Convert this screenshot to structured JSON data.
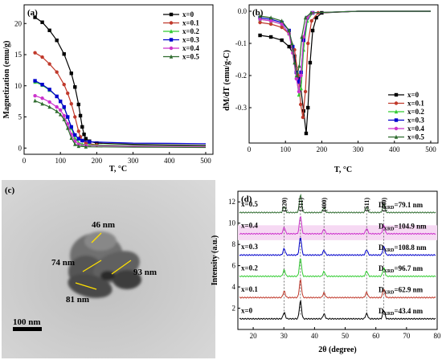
{
  "chart_data": [
    {
      "panel": "(a)",
      "type": "line",
      "xlabel": "T, °C",
      "ylabel": "Magnetization (emu/g)",
      "xlim": [
        0,
        520
      ],
      "ylim": [
        -1,
        23
      ],
      "xticks": [
        "0",
        "100",
        "200",
        "300",
        "400",
        "500"
      ],
      "yticks": [
        "0",
        "5",
        "10",
        "15",
        "20"
      ],
      "legend_position": "top-right",
      "series": [
        {
          "name": "x=0",
          "color": "#000000",
          "x": [
            30,
            50,
            70,
            90,
            110,
            130,
            140,
            150,
            155,
            160,
            165,
            170,
            180,
            200,
            300,
            400,
            500
          ],
          "y": [
            21,
            20.2,
            18.9,
            17.3,
            15.1,
            12,
            9.8,
            7,
            5.2,
            3.4,
            2.2,
            1.5,
            1.1,
            0.8,
            0.6,
            0.5,
            0.45
          ]
        },
        {
          "name": "x=0.1",
          "color": "#c0392b",
          "x": [
            30,
            50,
            70,
            90,
            110,
            120,
            130,
            140,
            150,
            155,
            160,
            170,
            200,
            300,
            400,
            500
          ],
          "y": [
            15.3,
            14.6,
            13.5,
            12.2,
            10.2,
            8.8,
            7.1,
            5,
            2.7,
            1.8,
            1.2,
            0.8,
            0.5,
            0.35,
            0.3,
            0.28
          ]
        },
        {
          "name": "x=0.2",
          "color": "#33cc33",
          "x": [
            30,
            50,
            70,
            90,
            100,
            110,
            120,
            130,
            140,
            150,
            160,
            180,
            300,
            400,
            500
          ],
          "y": [
            10.6,
            10.1,
            9.3,
            8.3,
            7.5,
            6.5,
            5,
            3.2,
            1.6,
            0.9,
            0.6,
            0.5,
            0.4,
            0.35,
            0.32
          ]
        },
        {
          "name": "x=0.3",
          "color": "#0000cc",
          "x": [
            30,
            50,
            70,
            90,
            100,
            110,
            120,
            130,
            140,
            150,
            160,
            180,
            300,
            400,
            500
          ],
          "y": [
            10.8,
            10.2,
            9.4,
            8.3,
            7.5,
            6.6,
            5,
            3.4,
            2.1,
            1.5,
            1.2,
            1,
            0.8,
            0.75,
            0.7
          ]
        },
        {
          "name": "x=0.4",
          "color": "#cc33cc",
          "x": [
            30,
            50,
            70,
            90,
            100,
            110,
            120,
            130,
            140,
            150,
            170,
            300,
            400,
            500
          ],
          "y": [
            8.4,
            8,
            7.4,
            6.6,
            6.1,
            5.2,
            3.9,
            2.2,
            1.1,
            0.6,
            0.4,
            0.3,
            0.28,
            0.25
          ]
        },
        {
          "name": "x=0.5",
          "color": "#2e6b2e",
          "x": [
            30,
            50,
            70,
            90,
            100,
            110,
            120,
            130,
            140,
            150,
            170,
            300,
            400,
            500
          ],
          "y": [
            7.6,
            7.1,
            6.6,
            5.9,
            5.4,
            4.6,
            3.2,
            1.6,
            0.6,
            0.3,
            0.2,
            0.15,
            0.12,
            0.1
          ]
        }
      ]
    },
    {
      "panel": "(b)",
      "type": "line",
      "xlabel": "T, °C",
      "ylabel": "dM/dT (emu/g-C)",
      "xlim": [
        0,
        520
      ],
      "ylim": [
        -0.41,
        0.02
      ],
      "xticks": [
        "0",
        "100",
        "200",
        "300",
        "400",
        "500"
      ],
      "yticks": [
        "0.0",
        "-0.1",
        "-0.2",
        "-0.3"
      ],
      "legend_position": "bottom-right",
      "series": [
        {
          "name": "x=0",
          "color": "#000000",
          "x": [
            30,
            60,
            90,
            110,
            125,
            140,
            150,
            157,
            162,
            168,
            175,
            185,
            200,
            300,
            400,
            500
          ],
          "y": [
            -0.075,
            -0.08,
            -0.09,
            -0.11,
            -0.14,
            -0.22,
            -0.31,
            -0.38,
            -0.3,
            -0.16,
            -0.06,
            -0.02,
            -0.005,
            0,
            0,
            0
          ]
        },
        {
          "name": "x=0.1",
          "color": "#c0392b",
          "x": [
            30,
            60,
            90,
            110,
            125,
            135,
            142,
            148,
            155,
            162,
            172,
            190,
            300,
            400,
            500
          ],
          "y": [
            -0.035,
            -0.04,
            -0.05,
            -0.07,
            -0.12,
            -0.2,
            -0.29,
            -0.33,
            -0.25,
            -0.1,
            -0.03,
            -0.005,
            0,
            0,
            0
          ]
        },
        {
          "name": "x=0.2",
          "color": "#33cc33",
          "x": [
            30,
            60,
            90,
            110,
            120,
            130,
            137,
            143,
            150,
            160,
            175,
            300,
            400,
            500
          ],
          "y": [
            -0.025,
            -0.03,
            -0.04,
            -0.07,
            -0.12,
            -0.2,
            -0.26,
            -0.24,
            -0.12,
            -0.03,
            -0.005,
            0,
            0,
            0
          ]
        },
        {
          "name": "x=0.3",
          "color": "#0000cc",
          "x": [
            30,
            60,
            90,
            110,
            120,
            130,
            137,
            143,
            150,
            160,
            175,
            300,
            400,
            500
          ],
          "y": [
            -0.02,
            -0.025,
            -0.035,
            -0.06,
            -0.11,
            -0.19,
            -0.22,
            -0.19,
            -0.09,
            -0.02,
            -0.005,
            0,
            0,
            0
          ]
        },
        {
          "name": "x=0.4",
          "color": "#cc33cc",
          "x": [
            30,
            60,
            90,
            110,
            120,
            130,
            137,
            143,
            150,
            160,
            175,
            300,
            400,
            500
          ],
          "y": [
            -0.025,
            -0.03,
            -0.04,
            -0.07,
            -0.13,
            -0.21,
            -0.25,
            -0.2,
            -0.08,
            -0.02,
            -0.005,
            0,
            0,
            0
          ]
        },
        {
          "name": "x=0.5",
          "color": "#2e6b2e",
          "x": [
            30,
            60,
            90,
            110,
            118,
            125,
            132,
            138,
            145,
            155,
            170,
            300,
            400,
            500
          ],
          "y": [
            -0.015,
            -0.02,
            -0.03,
            -0.06,
            -0.1,
            -0.16,
            -0.2,
            -0.17,
            -0.08,
            -0.02,
            -0.005,
            0,
            0,
            0
          ]
        }
      ]
    },
    {
      "panel": "(c)",
      "type": "image",
      "annotations": [
        "46 nm",
        "74 nm",
        "93 nm",
        "81 nm"
      ],
      "scale_bar": "100 nm"
    },
    {
      "panel": "(d)",
      "type": "line",
      "xlabel": "2θ (degree)",
      "ylabel": "Intensity (a.u.)",
      "xlim": [
        15,
        80
      ],
      "ylim": [
        0,
        13
      ],
      "xticks": [
        "20",
        "30",
        "40",
        "50",
        "60",
        "70",
        "80"
      ],
      "yticks": [
        "2",
        "4",
        "6",
        "8",
        "10",
        "12"
      ],
      "peak_labels": [
        {
          "label": "(220)",
          "x": 30.1
        },
        {
          "label": "(311)",
          "x": 35.4
        },
        {
          "label": "(400)",
          "x": 43.1
        },
        {
          "label": "(511)",
          "x": 57.0
        },
        {
          "label": "(440)",
          "x": 62.6
        }
      ],
      "peak_heights": [
        0.6,
        1.7,
        0.45,
        0.5,
        0.8
      ],
      "series": [
        {
          "name": "x=0",
          "color": "#000000",
          "offset": 1.0,
          "size_prefix": "D",
          "size_sub": "XRD",
          "size_value": "=43.4 nm"
        },
        {
          "name": "x=0.1",
          "color": "#c0392b",
          "offset": 3.0,
          "size_prefix": "D",
          "size_sub": "XRD",
          "size_value": "=62.9 nm"
        },
        {
          "name": "x=0.2",
          "color": "#33cc33",
          "offset": 5.0,
          "size_prefix": "D",
          "size_sub": "XRD",
          "size_value": "=96.7 nm"
        },
        {
          "name": "x=0.3",
          "color": "#0000cc",
          "offset": 7.0,
          "size_prefix": "D",
          "size_sub": "XRD",
          "size_value": "=108.8 nm"
        },
        {
          "name": "x=0.4",
          "color": "#cc33cc",
          "offset": 9.0,
          "size_prefix": "D",
          "size_sub": "XRD",
          "size_value": "=104.9 nm"
        },
        {
          "name": "x=0.5",
          "color": "#2e6b2e",
          "offset": 11.0,
          "size_prefix": "D",
          "size_sub": "XRD",
          "size_value": "=79.1 nm"
        }
      ]
    }
  ]
}
